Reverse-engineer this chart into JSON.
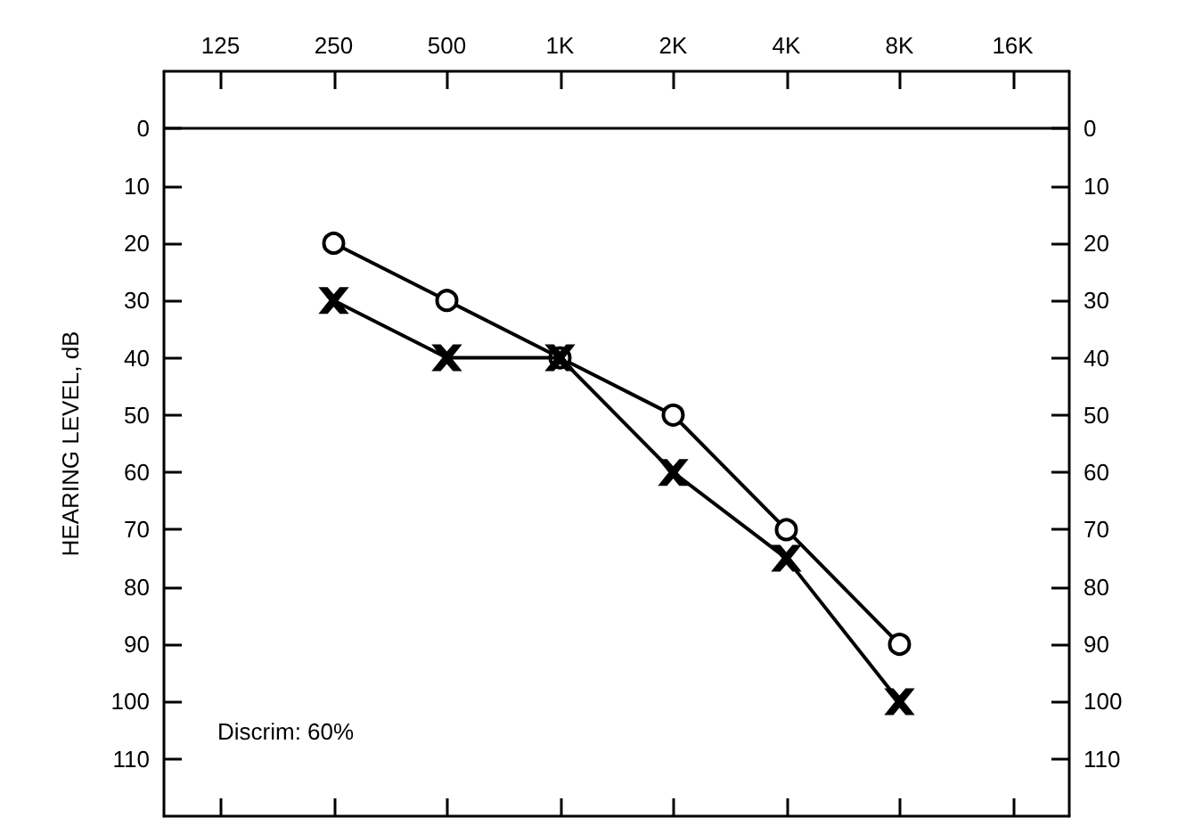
{
  "chart_data": {
    "type": "line",
    "ylabel": "HEARING LEVEL, dB",
    "categories": [
      "125",
      "250",
      "500",
      "1K",
      "2K",
      "4K",
      "8K",
      "16K"
    ],
    "series": [
      {
        "color": "#000000",
        "marker": "circle",
        "values": [
          null,
          20,
          30,
          40,
          50,
          70,
          90,
          null
        ]
      },
      {
        "color": "#000000",
        "marker": "cross",
        "values": [
          null,
          30,
          40,
          40,
          60,
          75,
          100,
          null
        ]
      }
    ],
    "ylim": [
      120,
      -10
    ],
    "yticks": [
      0,
      10,
      20,
      30,
      40,
      50,
      60,
      70,
      80,
      90,
      100,
      110
    ],
    "y2lim": [
      120,
      -10
    ],
    "y2ticks": [
      0,
      10,
      20,
      30,
      40,
      50,
      60,
      70,
      80,
      90,
      100,
      110
    ],
    "ref_lines": [
      {
        "axis": "y",
        "value": 0,
        "color": "#000000"
      }
    ],
    "annotations": [
      "Discrim: 60%"
    ],
    "line_style": "solid"
  }
}
